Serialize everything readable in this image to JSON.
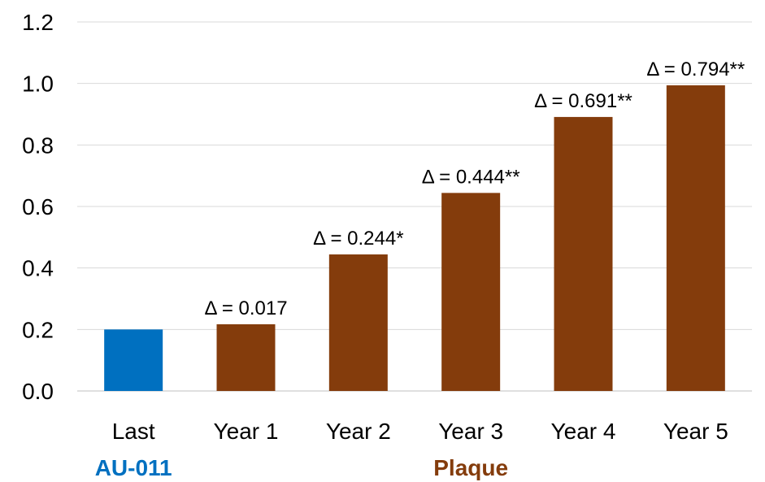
{
  "chart_data": {
    "type": "bar",
    "categories": [
      "Last",
      "Year 1",
      "Year 2",
      "Year 3",
      "Year 4",
      "Year 5"
    ],
    "values": [
      0.2,
      0.217,
      0.444,
      0.644,
      0.891,
      0.994
    ],
    "bar_colors": [
      "#0070c0",
      "#843c0c",
      "#843c0c",
      "#843c0c",
      "#843c0c",
      "#843c0c"
    ],
    "data_labels": [
      "",
      "Δ = 0.017",
      "Δ = 0.244*",
      "Δ = 0.444**",
      "Δ = 0.691**",
      "Δ = 0.794**"
    ],
    "yticks": [
      "0.0",
      "0.2",
      "0.4",
      "0.6",
      "0.8",
      "1.0",
      "1.2"
    ],
    "ylim": [
      0,
      1.2
    ],
    "grid": true,
    "title": "",
    "xlabel": "",
    "ylabel": "",
    "groups": [
      {
        "label": "AU-011",
        "color": "#0070c0",
        "categories": [
          "Last"
        ]
      },
      {
        "label": "Plaque",
        "color": "#843c0c",
        "categories": [
          "Year 1",
          "Year 2",
          "Year 3",
          "Year 4",
          "Year 5"
        ]
      }
    ]
  }
}
